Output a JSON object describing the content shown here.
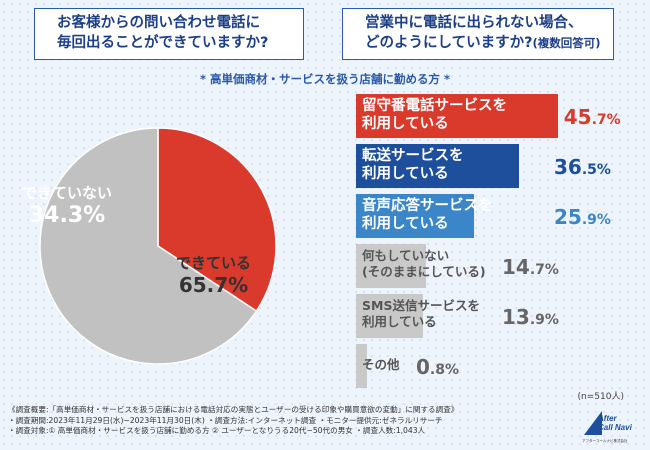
{
  "questions": {
    "q1_line1": "お客様からの問い合わせ電話に",
    "q1_line2": "毎回出ることができていますか?",
    "q2_line1": "営業中に電話に出られない場合、",
    "q2_line2": "どのようにしていますか?",
    "q2_note": "(複数回答可)"
  },
  "subtitle": "* 高単価商材・サービスを扱う店舗に勤める方 *",
  "chart_data": [
    {
      "type": "pie",
      "title": "お客様からの問い合わせ電話に毎回出ることができていますか?",
      "slices": [
        {
          "label": "できていない",
          "value": 34.3,
          "display": "34.3%",
          "color": "#d93a2b"
        },
        {
          "label": "できている",
          "value": 65.7,
          "display": "65.7%",
          "color": "#c1c1c1"
        }
      ]
    },
    {
      "type": "bar",
      "orientation": "horizontal",
      "title": "営業中に電話に出られない場合、どのようにしていますか?(複数回答可)",
      "note": "(n=510人)",
      "xlim": [
        0,
        100
      ],
      "bars": [
        {
          "line1": "留守番電話サービスを",
          "line2": "利用している",
          "value": 45.7,
          "display": "45.7%",
          "color": "#d93a2b",
          "text_color": "#d93a2b"
        },
        {
          "line1": "転送サービスを",
          "line2": "利用している",
          "value": 36.5,
          "display": "36.5%",
          "color": "#1d4f9c",
          "text_color": "#1d4f9c"
        },
        {
          "line1": "音声応答サービスを",
          "line2": "利用している",
          "value": 25.9,
          "display": "25.9%",
          "color": "#3a86c8",
          "text_color": "#3a86c8"
        },
        {
          "line1": "何もしていない",
          "line2": "(そのままにしている)",
          "value": 14.7,
          "display": "14.7%",
          "color": "#c9c9c9",
          "text_color": "#666666"
        },
        {
          "line1": "SMS送信サービスを",
          "line2": "利用している",
          "value": 13.9,
          "display": "13.9%",
          "color": "#c9c9c9",
          "text_color": "#666666"
        },
        {
          "line1": "その他",
          "line2": "",
          "value": 0.8,
          "display": "0.8%",
          "color": "#c9c9c9",
          "text_color": "#666666"
        }
      ]
    }
  ],
  "footer": {
    "line1": "《調査概要:「高単価商材・サービスを扱う店舗における電話対応の実態とユーザーの受ける印象や購買意欲の変動」に関する調査》",
    "line2": "・調査期間:2023年11月29日(水)~2023年11月30日(木)  ・調査方法:インターネット調査  ・モニター提供元:ゼネラルリサーチ",
    "line3": "・調査対象:① 高単価商材・サービスを扱う店舗に勤める方 ② ユーザーとなりうる20代~50代の男女      ・調査人数:1,043人"
  },
  "logo": {
    "line1": "After",
    "line2": "Call Navi",
    "sub": "アフターコールナビ株式会社"
  }
}
